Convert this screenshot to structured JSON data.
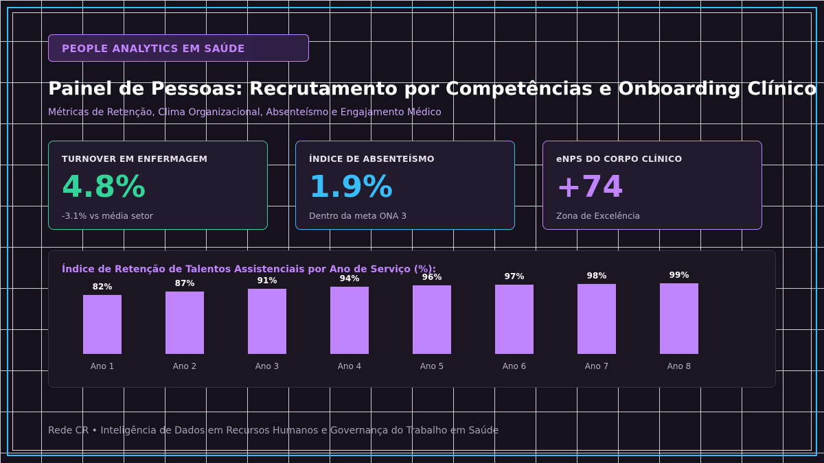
{
  "header": {
    "badge": "PEOPLE ANALYTICS EM SAÚDE",
    "title": "Painel de Pessoas: Recrutamento por Competências e Onboarding Clínico",
    "subtitle": "Métricas de Retenção, Clima Organizacional, Absenteísmo e Engajamento Médico"
  },
  "kpis": [
    {
      "label": "TURNOVER EM ENFERMAGEM",
      "value": "4.8%",
      "note": "-3.1% vs média setor",
      "color": "#34d399"
    },
    {
      "label": "ÍNDICE DE ABSENTEÍSMO",
      "value": "1.9%",
      "note": "Dentro da meta ONA 3",
      "color": "#38bdf8"
    },
    {
      "label": "eNPS DO CORPO CLÍNICO",
      "value": "+74",
      "note": "Zona de Excelência",
      "color": "#c084fc"
    }
  ],
  "chart_data": {
    "type": "bar",
    "title": "Índice de Retenção de Talentos Assistenciais por Ano de Serviço (%):",
    "categories": [
      "Ano 1",
      "Ano 2",
      "Ano 3",
      "Ano 4",
      "Ano 5",
      "Ano 6",
      "Ano 7",
      "Ano 8"
    ],
    "values": [
      82,
      87,
      91,
      94,
      96,
      97,
      98,
      99
    ],
    "value_labels": [
      "82%",
      "87%",
      "91%",
      "94%",
      "96%",
      "97%",
      "98%",
      "99%"
    ],
    "bar_color": "#c084fc",
    "ylim": [
      0,
      100
    ],
    "grid": false
  },
  "footer": "Rede CR • Inteligência de Dados em Recursos Humanos e Governança do Trabalho em Saúde"
}
